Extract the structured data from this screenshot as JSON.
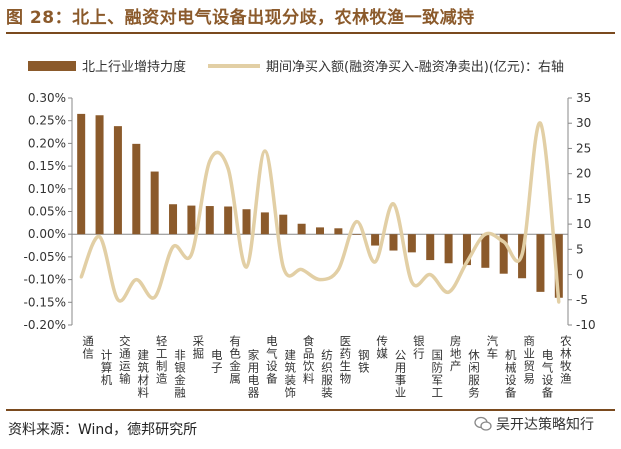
{
  "title": "图 28：北上、融资对电气设备出现分歧，农林牧渔一致减持",
  "source": "资料来源：Wind，德邦研究所",
  "watermark": "吴开达策略知行",
  "colors": {
    "bar": "#8B5A2B",
    "line": "#E2CFA5",
    "title": "#8B5A2B",
    "axis": "#888888"
  },
  "chart_data": {
    "type": "bar+line",
    "categories": [
      "通信",
      "计算机",
      "交通运输",
      "建筑材料",
      "轻工制造",
      "非银金融",
      "采掘",
      "电子",
      "有色金属",
      "家用电器",
      "电气设备",
      "建筑装饰",
      "食品饮料",
      "纺织服装",
      "医药生物",
      "钢铁",
      "传媒",
      "公用事业",
      "银行",
      "国防军工",
      "房地产",
      "休闲服务",
      "汽车",
      "机械设备",
      "商业贸易",
      "电气设备",
      "农林牧渔"
    ],
    "series": [
      {
        "name": "北上行业增持力度",
        "type": "bar",
        "axis": "left",
        "values": [
          0.00265,
          0.00262,
          0.00238,
          0.00199,
          0.00138,
          0.00066,
          0.00063,
          0.00062,
          0.00061,
          0.00055,
          0.00048,
          0.00043,
          0.00023,
          0.00015,
          0.00013,
          0.0,
          -0.00025,
          -0.00036,
          -0.0004,
          -0.00057,
          -0.00064,
          -0.00068,
          -0.00074,
          -0.00087,
          -0.00097,
          -0.00127,
          -0.0014
        ]
      },
      {
        "name": "期间净买入额(融资净买入-融资净卖出)(亿元)：右轴",
        "type": "line",
        "axis": "right",
        "values": [
          -0.5,
          7.5,
          -5,
          -1,
          -4.5,
          5.5,
          4,
          22.5,
          21,
          1.5,
          24.5,
          1.5,
          1,
          -1,
          1,
          10.5,
          2.5,
          14,
          -1.5,
          0,
          -3.5,
          2.5,
          8,
          6.5,
          4,
          30,
          -5.5
        ]
      }
    ],
    "left_axis": {
      "min": -0.002,
      "max": 0.003,
      "ticks": [
        "0.30%",
        "0.25%",
        "0.20%",
        "0.15%",
        "0.10%",
        "0.05%",
        "0.00%",
        "-0.05%",
        "-0.10%",
        "-0.15%",
        "-0.20%"
      ]
    },
    "right_axis": {
      "min": -10,
      "max": 35,
      "ticks": [
        "35",
        "30",
        "25",
        "20",
        "15",
        "10",
        "5",
        "0",
        "-5",
        "-10"
      ]
    },
    "legend": {
      "placement": "top",
      "bar_label": "北上行业增持力度",
      "line_label": "期间净买入额(融资净买入-融资净卖出)(亿元)：右轴"
    }
  }
}
